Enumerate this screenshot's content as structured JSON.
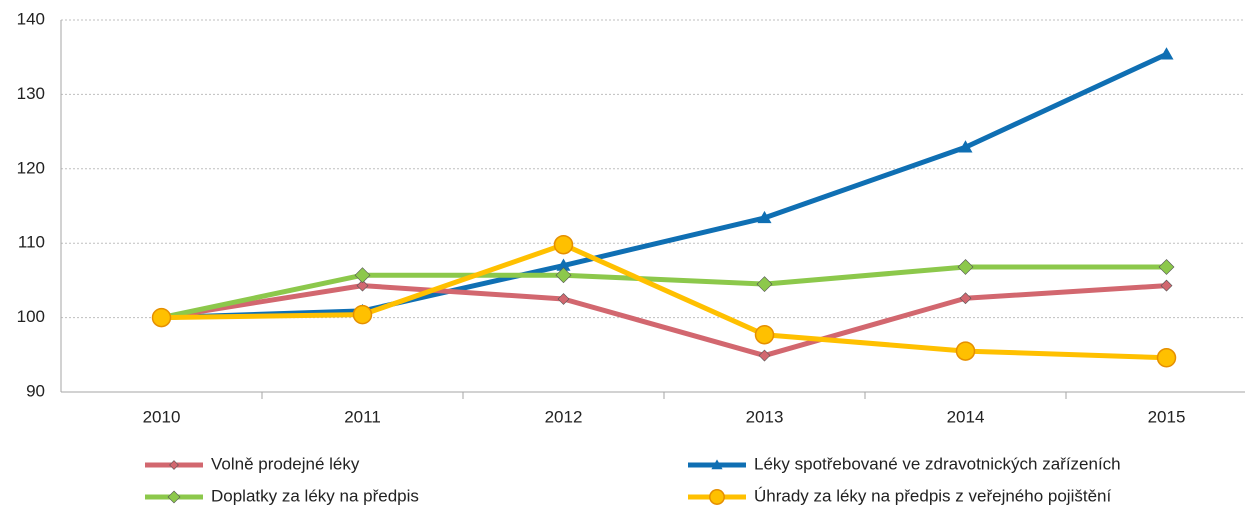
{
  "chart_data": {
    "type": "line",
    "categories": [
      "2010",
      "2011",
      "2012",
      "2013",
      "2014",
      "2015"
    ],
    "series": [
      {
        "name": "Volně prodejné léky",
        "color": "#d2676f",
        "marker": "diamond",
        "values": [
          100,
          104.3,
          102.5,
          94.9,
          102.6,
          104.3
        ]
      },
      {
        "name": "Léky spotřebované ve zdravotnických zařízeních",
        "color": "#0f6fb3",
        "marker": "triangle",
        "values": [
          100,
          100.9,
          107,
          113.4,
          122.9,
          135.4
        ]
      },
      {
        "name": "Doplatky za léky na předpis",
        "color": "#8cc84b",
        "marker": "diamond",
        "values": [
          100,
          105.7,
          105.7,
          104.5,
          106.8,
          106.8
        ]
      },
      {
        "name": "Úhrady za léky na předpis z veřejného pojištění",
        "color": "#ffc000",
        "marker": "circle",
        "values": [
          100,
          100.4,
          109.8,
          97.7,
          95.5,
          94.6
        ]
      }
    ],
    "ylim": [
      90,
      140
    ],
    "yticks": [
      90,
      100,
      110,
      120,
      130,
      140
    ],
    "grid": true,
    "legend": "bottom"
  }
}
